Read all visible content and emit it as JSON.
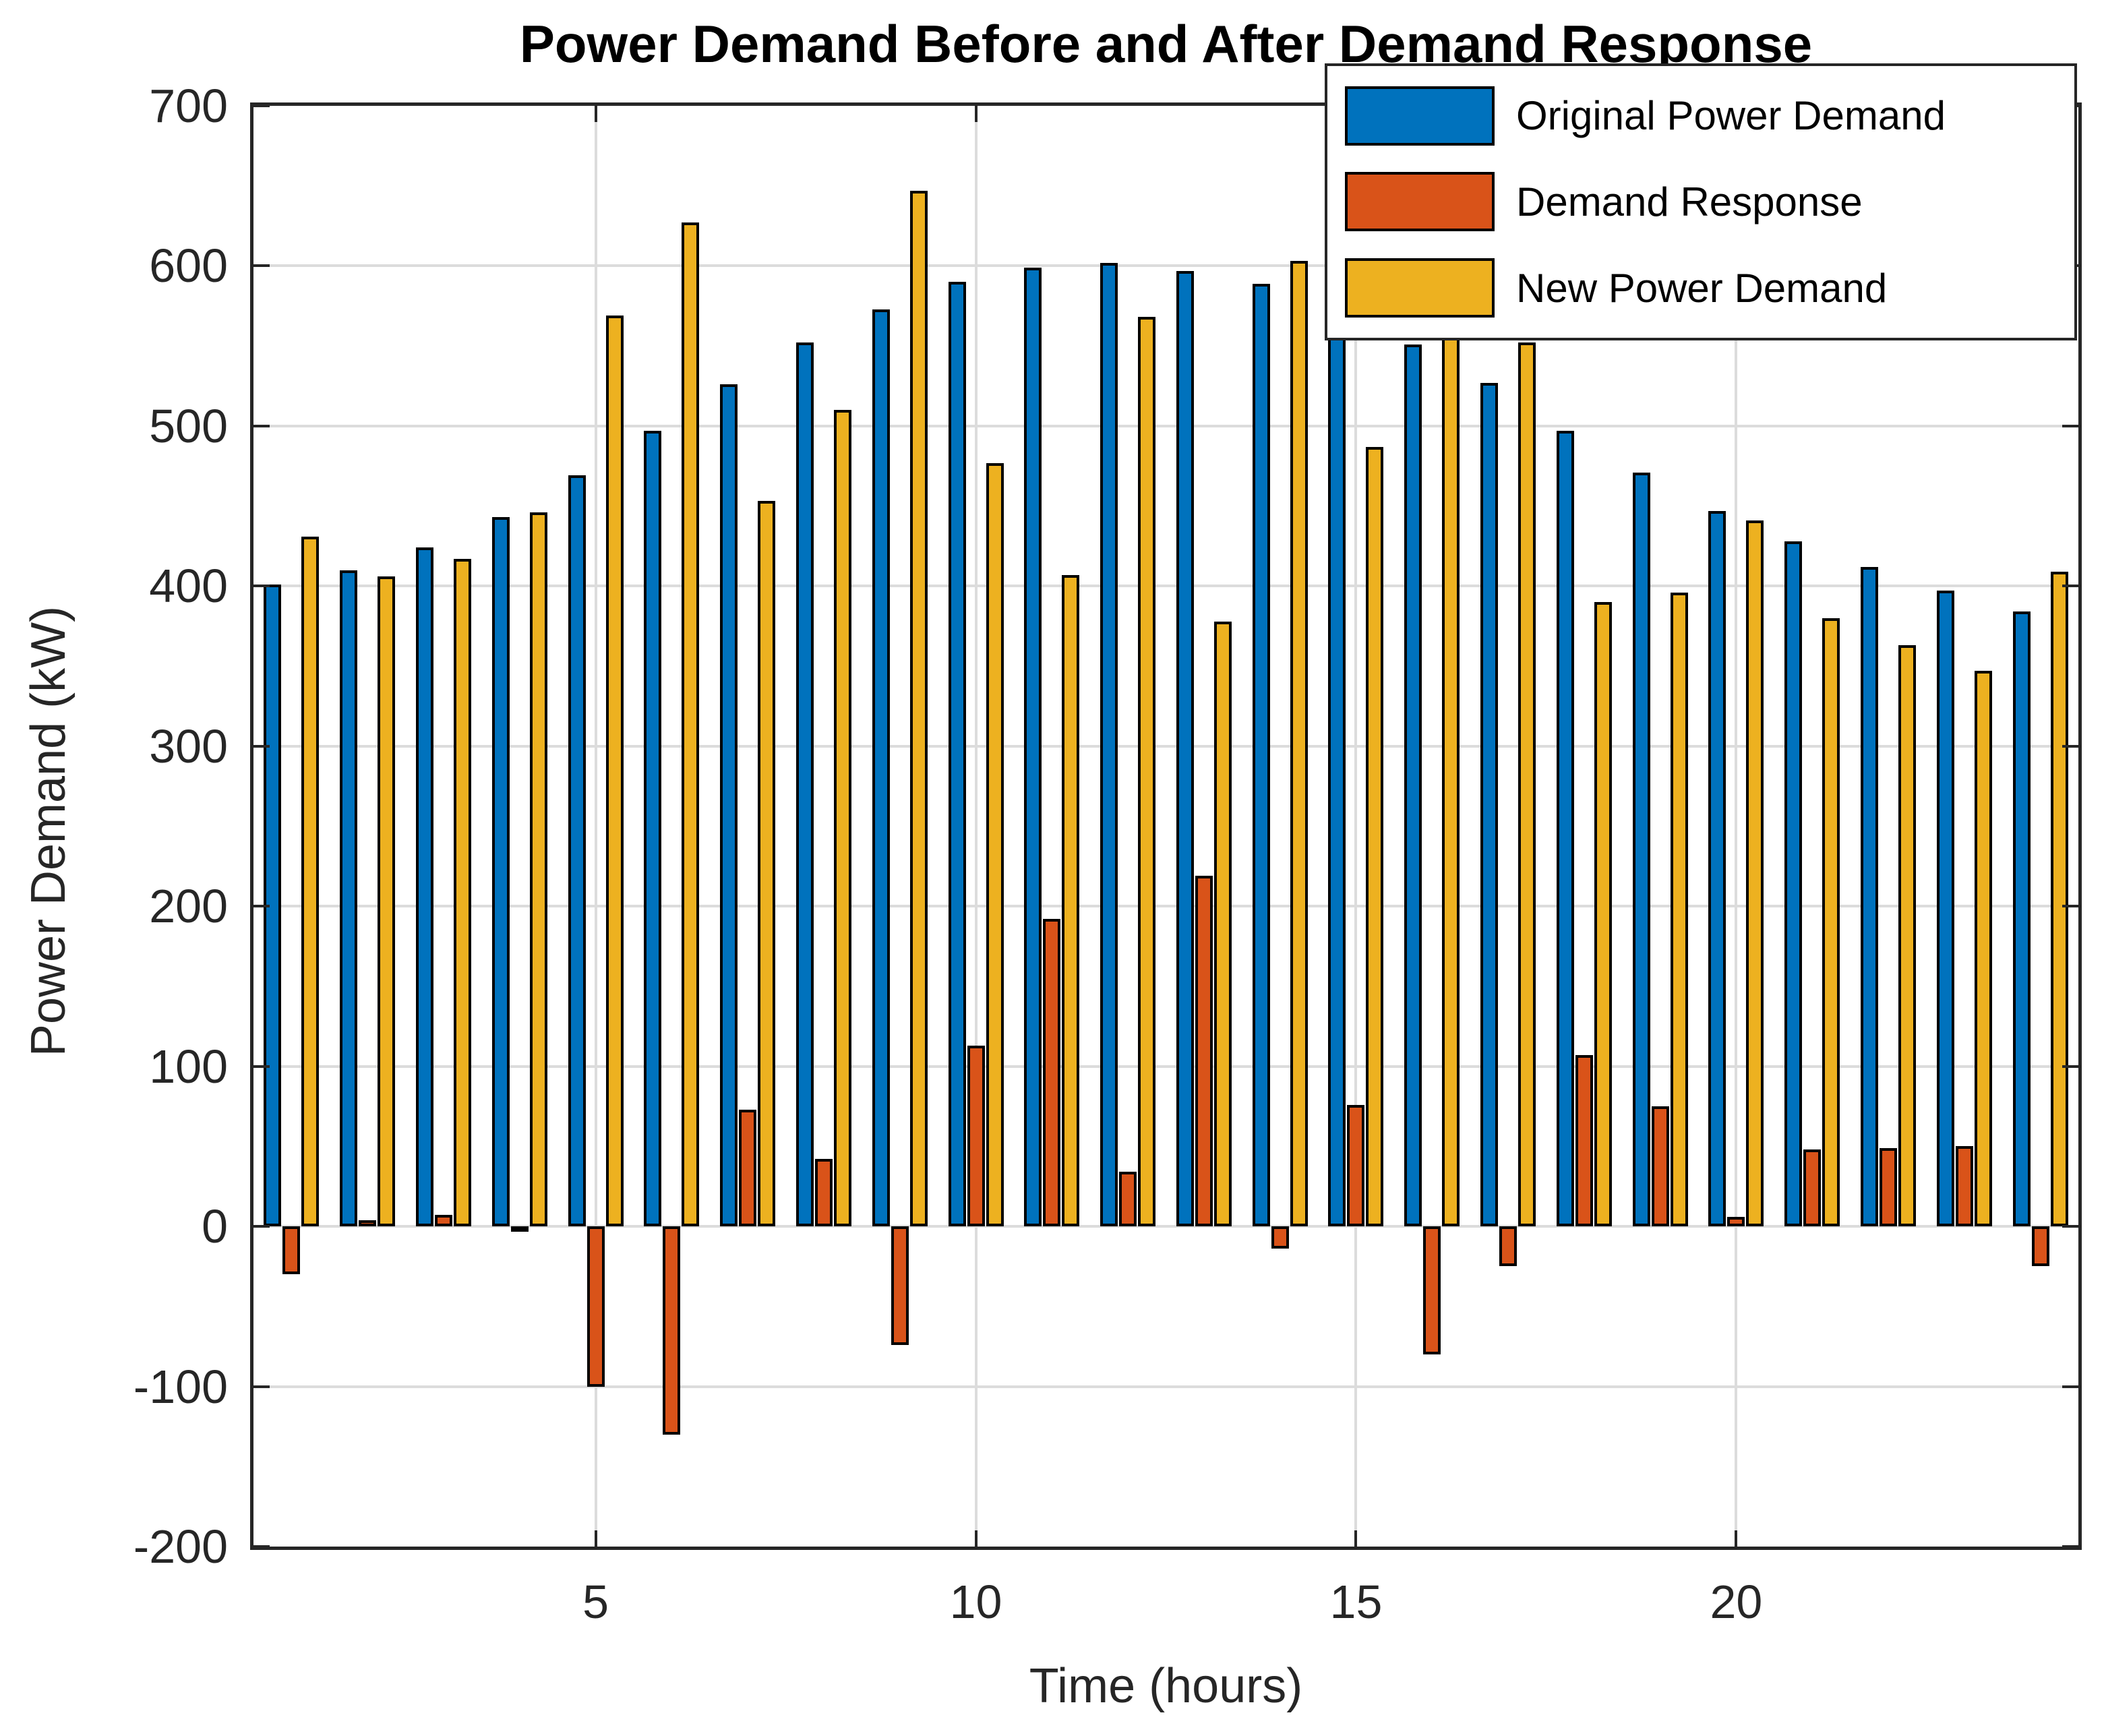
{
  "chart_data": {
    "type": "bar",
    "title": "Power Demand Before and After Demand Response",
    "xlabel": "Time (hours)",
    "ylabel": "Power Demand (kW)",
    "x": [
      1,
      2,
      3,
      4,
      5,
      6,
      7,
      8,
      9,
      10,
      11,
      12,
      13,
      14,
      15,
      16,
      17,
      18,
      19,
      20,
      21,
      22,
      23,
      24
    ],
    "series": [
      {
        "name": "Original Power Demand",
        "color": "#0072BD",
        "values": [
          401,
          410,
          424,
          443,
          469,
          497,
          526,
          552,
          573,
          590,
          599,
          602,
          597,
          589,
          563,
          551,
          527,
          497,
          471,
          447,
          428,
          412,
          397,
          384
        ]
      },
      {
        "name": "Demand Response",
        "color": "#D95319",
        "values": [
          -30,
          4,
          7,
          -3,
          -100,
          -130,
          73,
          42,
          -74,
          113,
          192,
          34,
          219,
          -14,
          76,
          -80,
          -25,
          107,
          75,
          6,
          48,
          49,
          50,
          -25
        ]
      },
      {
        "name": "New Power Demand",
        "color": "#EDB120",
        "values": [
          431,
          406,
          417,
          446,
          569,
          627,
          453,
          510,
          647,
          477,
          407,
          568,
          378,
          603,
          487,
          631,
          552,
          390,
          396,
          441,
          380,
          363,
          347,
          409
        ]
      }
    ],
    "xlim": [
      0.5,
      24.5
    ],
    "ylim": [
      -200,
      700
    ],
    "x_ticks": [
      5,
      10,
      15,
      20
    ],
    "y_ticks": [
      700,
      600,
      500,
      400,
      300,
      200,
      100,
      0,
      -100,
      -200
    ],
    "grid": true,
    "legend_position": "northeast",
    "bar_edge_color": "#000000",
    "axis_color": "#262626",
    "grid_color": "#dcdcdc",
    "background_color": "#ffffff"
  }
}
